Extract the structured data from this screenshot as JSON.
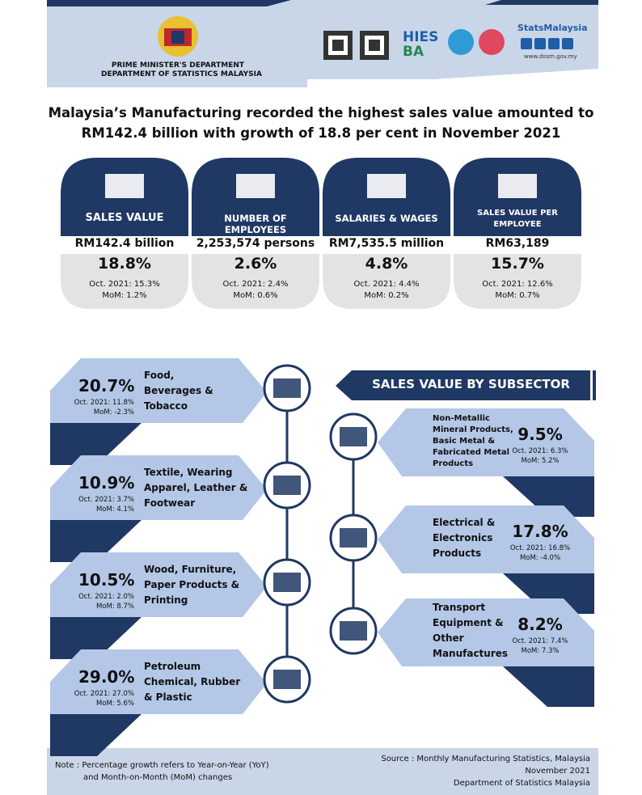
{
  "header": {
    "departments": [
      "PRIME MINISTER'S DEPARTMENT",
      "DEPARTMENT OF STATISTICS MALAYSIA"
    ],
    "brand": "StatsMalaysia",
    "website": "www.dosm.gov.my",
    "survey_logo": [
      "HIES",
      "BA"
    ]
  },
  "headline": [
    "Malaysia’s Manufacturing recorded the highest sales value amounted to",
    "RM142.4 billion with growth of 18.8 per cent in November 2021"
  ],
  "cards": [
    {
      "title": "SALES VALUE",
      "value": "RM142.4 billion",
      "growth": "18.8%",
      "oct": "Oct. 2021: 15.3%",
      "mom": "MoM: 1.2%"
    },
    {
      "title": "NUMBER OF EMPLOYEES",
      "value": "2,253,574 persons",
      "growth": "2.6%",
      "oct": "Oct. 2021: 2.4%",
      "mom": "MoM: 0.6%"
    },
    {
      "title": "SALARIES & WAGES",
      "value": "RM7,535.5 million",
      "growth": "4.8%",
      "oct": "Oct. 2021: 4.4%",
      "mom": "MoM: 0.2%"
    },
    {
      "title": "SALES VALUE PER EMPLOYEE",
      "value": "RM63,189",
      "growth": "15.7%",
      "oct": "Oct. 2021: 12.6%",
      "mom": "MoM: 0.7%"
    }
  ],
  "section_title": "SALES VALUE BY SUBSECTOR",
  "subsectors": [
    {
      "label": [
        "Food,",
        "Beverages &",
        "Tobacco"
      ],
      "growth": "20.7%",
      "oct": "Oct. 2021:  11.8%",
      "mom": "MoM: -2.3%"
    },
    {
      "label": [
        "Textile, Wearing",
        "Apparel, Leather &",
        "Footwear"
      ],
      "growth": "10.9%",
      "oct": "Oct. 2021:  3.7%",
      "mom": "MoM: 4.1%"
    },
    {
      "label": [
        "Wood, Furniture,",
        "Paper Products &",
        "Printing"
      ],
      "growth": "10.5%",
      "oct": "Oct. 2021:  2.0%",
      "mom": "MoM: 8.7%"
    },
    {
      "label": [
        "Petroleum",
        "Chemical, Rubber",
        "& Plastic"
      ],
      "growth": "29.0%",
      "oct": "Oct. 2021: 27.0%",
      "mom": "MoM: 5.6%"
    },
    {
      "label": [
        "Non-Metallic",
        "Mineral Products,",
        "Basic Metal &",
        "Fabricated Metal",
        "Products"
      ],
      "growth": "9.5%",
      "oct": "Oct. 2021: 6.3%",
      "mom": "MoM: 5.2%"
    },
    {
      "label": [
        "Electrical &",
        "Electronics",
        "Products"
      ],
      "growth": "17.8%",
      "oct": "Oct. 2021: 16.8%",
      "mom": "MoM: -4.0%"
    },
    {
      "label": [
        "Transport",
        "Equipment &",
        "Other",
        "Manufactures"
      ],
      "growth": "8.2%",
      "oct": "Oct. 2021: 7.4%",
      "mom": "MoM: 7.3%"
    }
  ],
  "footer": {
    "note": [
      "Note : Percentage growth refers to Year-on-Year (YoY)",
      "and Month-on-Month (MoM) changes"
    ],
    "source": [
      "Source : Monthly Manufacturing Statistics,  Malaysia",
      "November 2021",
      "Department of Statistics Malaysia"
    ]
  }
}
